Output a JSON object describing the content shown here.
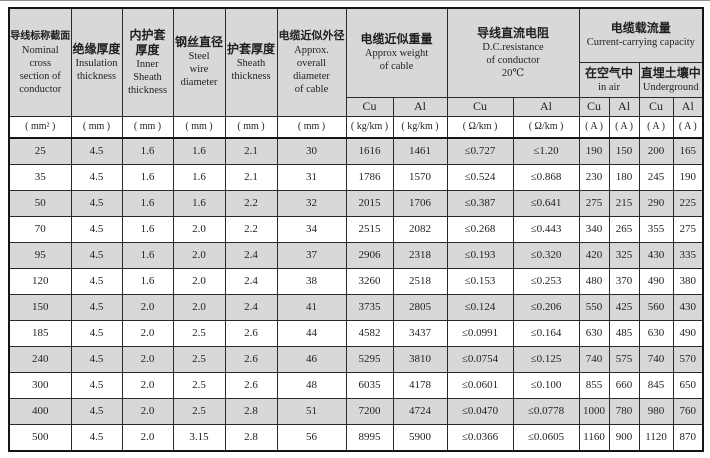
{
  "table": {
    "header": {
      "col1": {
        "zh": "导线标称截面",
        "en": "Nominal\ncross\nsection of\nconductor"
      },
      "col2": {
        "zh": "绝缘厚度",
        "en": "Insulation\nthickness"
      },
      "col3": {
        "zh": "内护套\n厚度",
        "en": "Inner\nSheath\nthickness"
      },
      "col4": {
        "zh": "钢丝直径",
        "en": "Steel\nwire\ndiameter"
      },
      "col5": {
        "zh": "护套厚度",
        "en": "Sheath\nthickness"
      },
      "col6": {
        "zh": "电缆近似外径",
        "en": "Approx.\noverall\ndiameter\nof cable"
      },
      "weight": {
        "zh": "电缆近似重量",
        "en": "Approx weight\nof cable"
      },
      "resistance": {
        "zh": "导线直流电阻",
        "en": "D.C.resistance\nof conductor\n20℃"
      },
      "capacity": {
        "zh": "电缆载流量",
        "en": "Current-carrying capacity"
      },
      "in_air": {
        "zh": "在空气中",
        "en": "in air"
      },
      "underground": {
        "zh": "直埋土壤中",
        "en": "Underground"
      }
    },
    "metals": [
      "Cu",
      "Al",
      "Cu",
      "Al",
      "Cu",
      "Al",
      "Cu",
      "Al"
    ],
    "units": [
      "( mm² )",
      "( mm )",
      "( mm )",
      "( mm )",
      "( mm )",
      "( mm )",
      "( kg/km )",
      "( kg/km )",
      "( Ω/km )",
      "( Ω/km )",
      "( A )",
      "( A )",
      "( A )",
      "( A )"
    ],
    "column_keys": [
      "cross-section",
      "insulation-thickness",
      "inner-sheath-thickness",
      "steel-wire-diameter",
      "sheath-thickness",
      "overall-diameter",
      "weight-cu",
      "weight-al",
      "resistance-cu",
      "resistance-al",
      "in-air-cu",
      "in-air-al",
      "underground-cu",
      "underground-al"
    ],
    "rows": [
      [
        "25",
        "4.5",
        "1.6",
        "1.6",
        "2.1",
        "30",
        "1616",
        "1461",
        "≤0.727",
        "≤1.20",
        "190",
        "150",
        "200",
        "165"
      ],
      [
        "35",
        "4.5",
        "1.6",
        "1.6",
        "2.1",
        "31",
        "1786",
        "1570",
        "≤0.524",
        "≤0.868",
        "230",
        "180",
        "245",
        "190"
      ],
      [
        "50",
        "4.5",
        "1.6",
        "1.6",
        "2.2",
        "32",
        "2015",
        "1706",
        "≤0.387",
        "≤0.641",
        "275",
        "215",
        "290",
        "225"
      ],
      [
        "70",
        "4.5",
        "1.6",
        "2.0",
        "2.2",
        "34",
        "2515",
        "2082",
        "≤0.268",
        "≤0.443",
        "340",
        "265",
        "355",
        "275"
      ],
      [
        "95",
        "4.5",
        "1.6",
        "2.0",
        "2.4",
        "37",
        "2906",
        "2318",
        "≤0.193",
        "≤0.320",
        "420",
        "325",
        "430",
        "335"
      ],
      [
        "120",
        "4.5",
        "1.6",
        "2.0",
        "2.4",
        "38",
        "3260",
        "2518",
        "≤0.153",
        "≤0.253",
        "480",
        "370",
        "490",
        "380"
      ],
      [
        "150",
        "4.5",
        "2.0",
        "2.0",
        "2.4",
        "41",
        "3735",
        "2805",
        "≤0.124",
        "≤0.206",
        "550",
        "425",
        "560",
        "430"
      ],
      [
        "185",
        "4.5",
        "2.0",
        "2.5",
        "2.6",
        "44",
        "4582",
        "3437",
        "≤0.0991",
        "≤0.164",
        "630",
        "485",
        "630",
        "490"
      ],
      [
        "240",
        "4.5",
        "2.0",
        "2.5",
        "2.6",
        "46",
        "5295",
        "3810",
        "≤0.0754",
        "≤0.125",
        "740",
        "575",
        "740",
        "570"
      ],
      [
        "300",
        "4.5",
        "2.0",
        "2.5",
        "2.6",
        "48",
        "6035",
        "4178",
        "≤0.0601",
        "≤0.100",
        "855",
        "660",
        "845",
        "650"
      ],
      [
        "400",
        "4.5",
        "2.0",
        "2.5",
        "2.8",
        "51",
        "7200",
        "4724",
        "≤0.0470",
        "≤0.0778",
        "1000",
        "780",
        "980",
        "760"
      ],
      [
        "500",
        "4.5",
        "2.0",
        "3.15",
        "2.8",
        "56",
        "8995",
        "5900",
        "≤0.0366",
        "≤0.0605",
        "1160",
        "900",
        "1120",
        "870"
      ]
    ],
    "colors": {
      "row_shade": "#d8d8d8",
      "border": "#2a2a2a",
      "background": "#ffffff"
    }
  }
}
